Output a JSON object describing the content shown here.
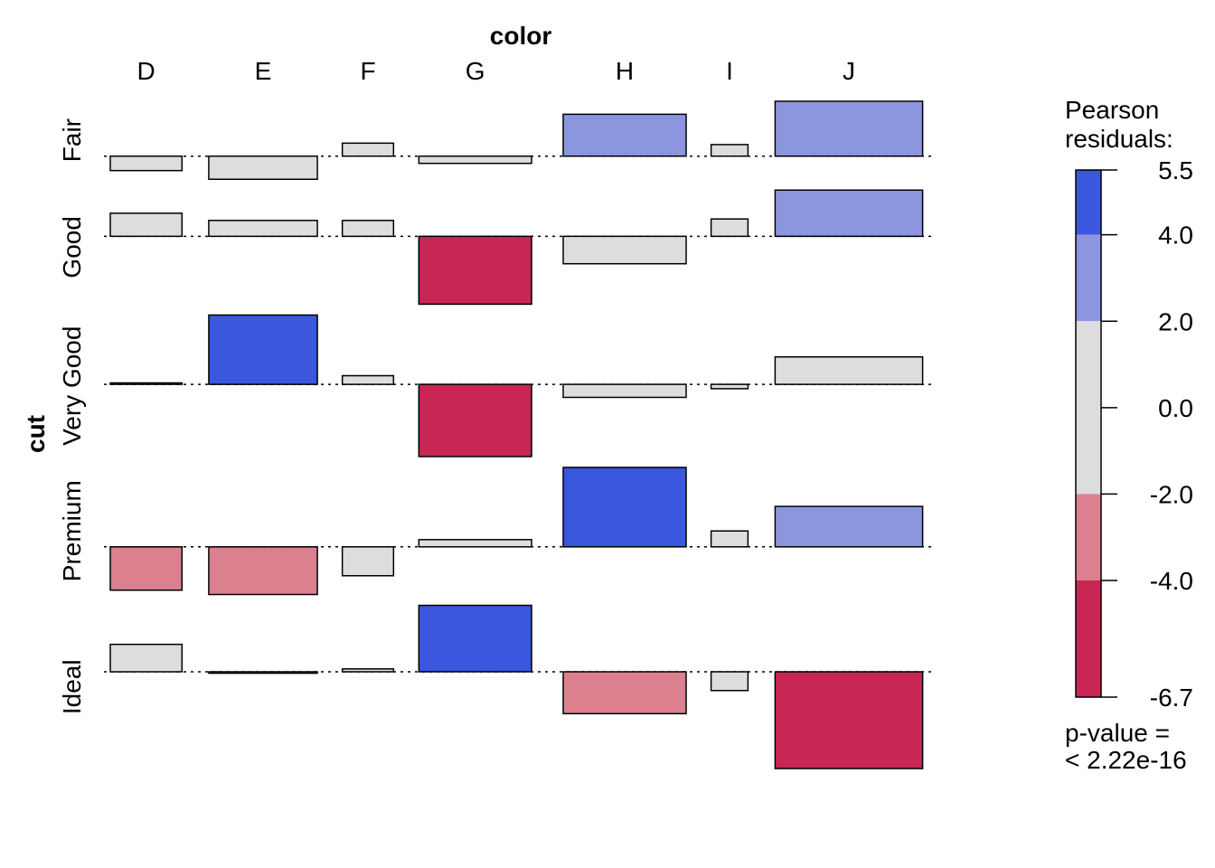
{
  "chart_data": {
    "type": "association",
    "column_variable": "color",
    "row_variable": "cut",
    "columns": [
      "D",
      "E",
      "F",
      "G",
      "H",
      "I",
      "J"
    ],
    "rows": [
      "Fair",
      "Good",
      "Very Good",
      "Premium",
      "Ideal"
    ],
    "pearson_residuals": [
      [
        -1.0,
        -1.6,
        0.9,
        -0.5,
        2.9,
        0.8,
        3.8
      ],
      [
        1.6,
        1.1,
        1.1,
        -4.7,
        -1.9,
        1.2,
        3.2
      ],
      [
        0.1,
        4.8,
        0.6,
        -5.0,
        -0.9,
        -0.3,
        1.9
      ],
      [
        -3.0,
        -3.3,
        -2.0,
        0.5,
        5.5,
        1.1,
        2.8
      ],
      [
        1.9,
        -0.1,
        0.2,
        4.6,
        -2.9,
        -1.3,
        -6.7
      ]
    ],
    "legend": {
      "title": "Pearson\nresiduals:",
      "title_lines": [
        "Pearson",
        "residuals:"
      ],
      "ticks": [
        "5.5",
        "4.0",
        "2.0",
        "0.0",
        "-2.0",
        "-4.0",
        "-6.7"
      ],
      "tick_values": [
        5.5,
        4.0,
        2.0,
        0.0,
        -2.0,
        -4.0,
        -6.7
      ],
      "min": -6.7,
      "max": 5.5,
      "color_bands": [
        {
          "from": 4.0,
          "to": 5.5,
          "color": "#3A57DD"
        },
        {
          "from": 2.0,
          "to": 4.0,
          "color": "#8C96DE"
        },
        {
          "from": -2.0,
          "to": 2.0,
          "color": "#DDDDDD"
        },
        {
          "from": -4.0,
          "to": -2.0,
          "color": "#DC7F8E"
        },
        {
          "from": -6.7,
          "to": -4.0,
          "color": "#C82755"
        }
      ]
    },
    "p_value_label": "p-value =",
    "p_value": "< 2.22e-16"
  }
}
